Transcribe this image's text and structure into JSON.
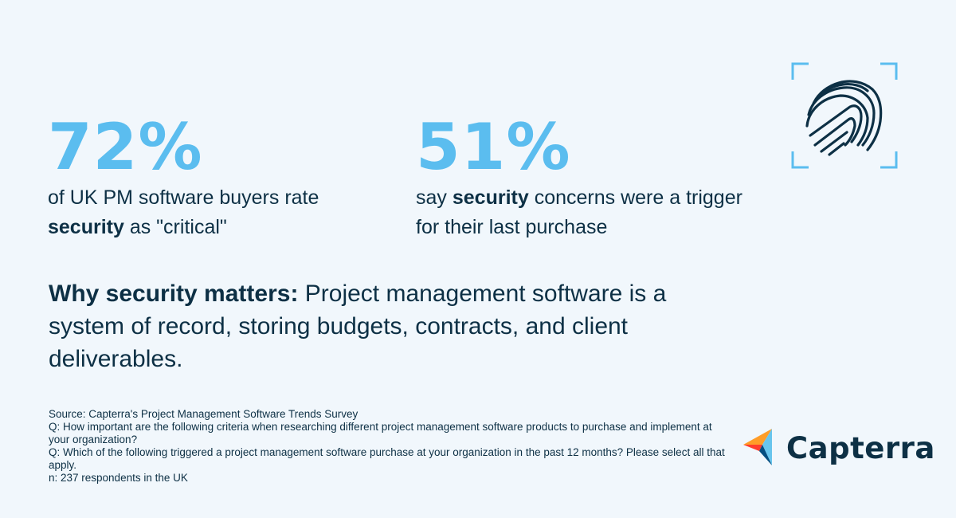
{
  "stats": [
    {
      "value": "72%",
      "text_pre": "of UK PM software buyers rate ",
      "text_bold": "security",
      "text_post": " as \"critical\""
    },
    {
      "value": "51%",
      "text_pre": "say ",
      "text_bold": "security",
      "text_post": " concerns were a trigger for their last purchase"
    }
  ],
  "why": {
    "lead": "Why security matters:",
    "body": " Project management software is a system of record, storing budgets, contracts, and client deliverables."
  },
  "source_lines": [
    "Source: Capterra's Project Management Software Trends Survey",
    "Q: How important are the following criteria when researching different project management software products to purchase and implement at your organization?",
    "Q: Which of the following triggered a project management software purchase at your organization in the past 12 months? Please select all that apply.",
    "n: 237 respondents in the UK"
  ],
  "logo": {
    "name": "Capterra"
  },
  "colors": {
    "background": "#f1f7fc",
    "accent": "#5bbdef",
    "text": "#0d3045",
    "logo_orange": "#ff9d28",
    "logo_blue": "#68c5ed",
    "logo_red": "#ff3d2e",
    "logo_navy": "#044d80"
  },
  "icons": {
    "security": "fingerprint-icon"
  }
}
